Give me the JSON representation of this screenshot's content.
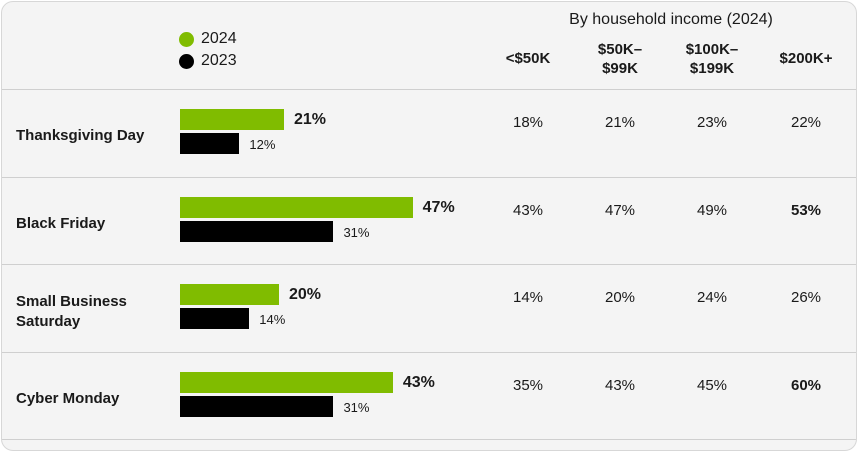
{
  "colors": {
    "2024": "#80bc00",
    "2023": "#000000"
  },
  "legend": [
    {
      "label": "2024",
      "color": "#80bc00"
    },
    {
      "label": "2023",
      "color": "#000000"
    }
  ],
  "table": {
    "group_title": "By household income (2024)",
    "columns": [
      "<$50K",
      "$50K–\n$99K",
      "$100K–\n$199K",
      "$200K+"
    ],
    "rows": [
      {
        "cells": [
          "18%",
          "21%",
          "23%",
          "22%"
        ],
        "bold": [
          false,
          false,
          false,
          false
        ]
      },
      {
        "cells": [
          "43%",
          "47%",
          "49%",
          "53%"
        ],
        "bold": [
          false,
          false,
          false,
          true
        ]
      },
      {
        "cells": [
          "14%",
          "20%",
          "24%",
          "26%"
        ],
        "bold": [
          false,
          false,
          false,
          false
        ]
      },
      {
        "cells": [
          "35%",
          "43%",
          "45%",
          "60%"
        ],
        "bold": [
          false,
          false,
          false,
          true
        ]
      }
    ]
  },
  "chart_data": {
    "type": "bar",
    "orientation": "horizontal",
    "categories": [
      "Thanksgiving Day",
      "Black Friday",
      "Small Business Saturday",
      "Cyber Monday"
    ],
    "series": [
      {
        "name": "2024",
        "values": [
          21,
          47,
          20,
          43
        ],
        "labels": [
          "21%",
          "47%",
          "20%",
          "43%"
        ]
      },
      {
        "name": "2023",
        "values": [
          12,
          31,
          14,
          31
        ],
        "labels": [
          "12%",
          "31%",
          "14%",
          "31%"
        ]
      }
    ],
    "unit": "%",
    "legend_position": "top-left",
    "grid": false
  }
}
